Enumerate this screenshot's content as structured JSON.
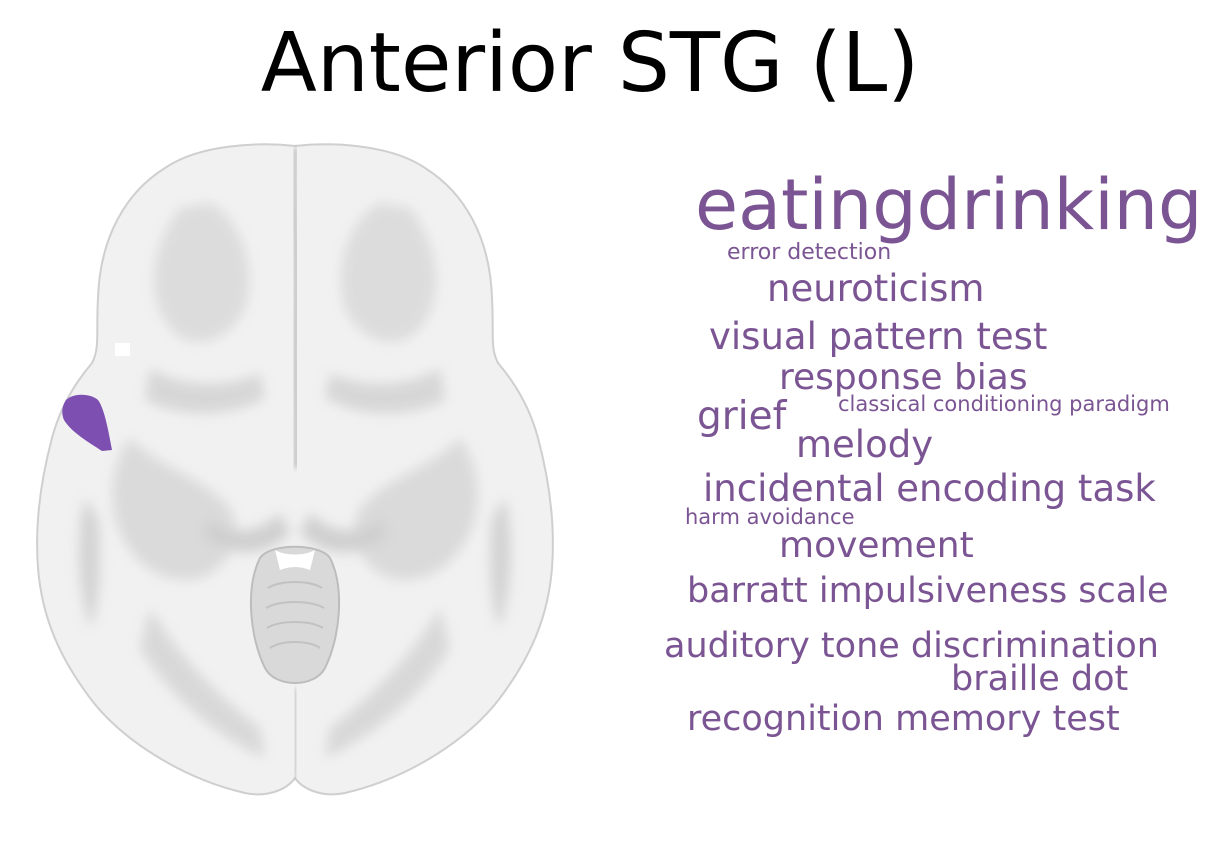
{
  "title": "Anterior STG (L)",
  "colors": {
    "accent": "#7b5593",
    "roi": "#7c4fb0",
    "brain_fill": "#f1f1f1",
    "brain_shade": "#d2d2d2",
    "brain_dark": "#bdbdbd",
    "background": "#ffffff"
  },
  "word_cloud": [
    {
      "text": "eatingdrinking",
      "weight": 1.0
    },
    {
      "text": "error detection",
      "weight": 0.16
    },
    {
      "text": "neuroticism",
      "weight": 0.4
    },
    {
      "text": "visual pattern test",
      "weight": 0.42
    },
    {
      "text": "response bias",
      "weight": 0.4
    },
    {
      "text": "classical conditioning paradigm",
      "weight": 0.15
    },
    {
      "text": "grief",
      "weight": 0.44
    },
    {
      "text": "melody",
      "weight": 0.42
    },
    {
      "text": "incidental encoding task",
      "weight": 0.42
    },
    {
      "text": "harm avoidance",
      "weight": 0.16
    },
    {
      "text": "movement",
      "weight": 0.4
    },
    {
      "text": "barratt impulsiveness scale",
      "weight": 0.4
    },
    {
      "text": "auditory tone discrimination",
      "weight": 0.41
    },
    {
      "text": "braille dot",
      "weight": 0.4
    },
    {
      "text": "recognition memory test",
      "weight": 0.4
    }
  ]
}
